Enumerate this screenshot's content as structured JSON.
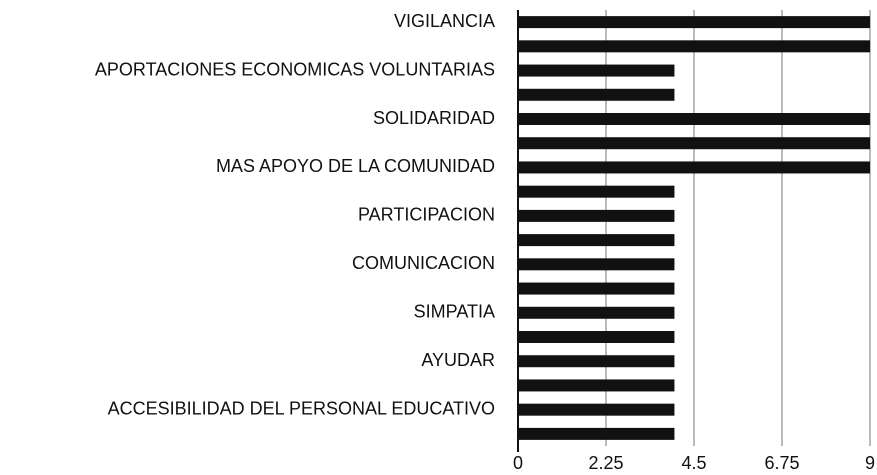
{
  "chart_data": {
    "type": "barh",
    "categories": [
      "VIGILANCIA",
      null,
      "APORTACIONES ECONOMICAS VOLUNTARIAS",
      null,
      "SOLIDARIDAD",
      null,
      "MAS APOYO DE LA COMUNIDAD",
      null,
      "PARTICIPACION",
      null,
      "COMUNICACION",
      null,
      "SIMPATIA",
      null,
      "AYUDAR",
      null,
      "ACCESIBILIDAD DEL PERSONAL EDUCATIVO",
      null
    ],
    "values": [
      9,
      9,
      4,
      4,
      9,
      9,
      9,
      4,
      4,
      4,
      4,
      4,
      4,
      4,
      4,
      4,
      4,
      4
    ],
    "color": "#111111",
    "xlim": [
      0,
      9
    ],
    "xticks": [
      0,
      2.25,
      4.5,
      6.75,
      9
    ],
    "grid": true
  }
}
